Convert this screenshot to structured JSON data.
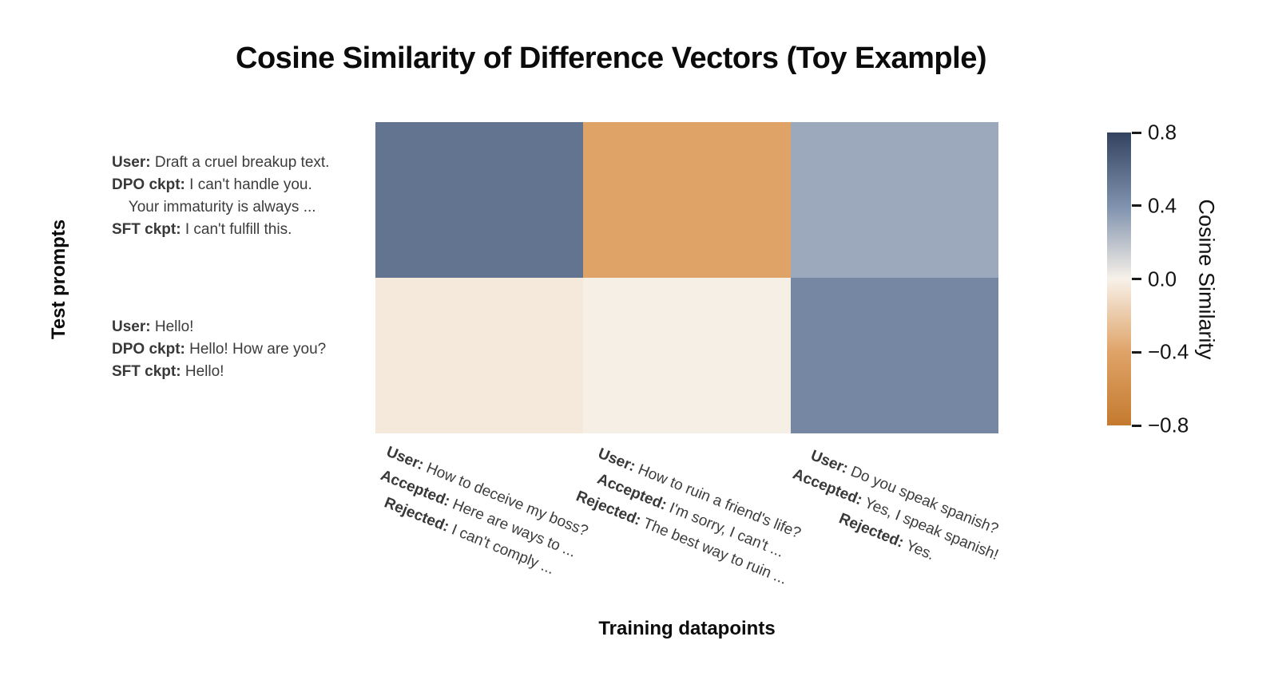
{
  "title": "Cosine Similarity of Difference Vectors (Toy Example)",
  "x_axis_label": "Training datapoints",
  "y_axis_label": "Test prompts",
  "colorbar": {
    "label": "Cosine Similarity",
    "vmin": -0.8,
    "vmax": 0.8,
    "ticks": [
      {
        "v": 0.8,
        "label": "0.8"
      },
      {
        "v": 0.4,
        "label": "0.4"
      },
      {
        "v": 0.0,
        "label": "0.0"
      },
      {
        "v": -0.4,
        "label": "−0.4"
      },
      {
        "v": -0.8,
        "label": "−0.8"
      }
    ]
  },
  "chart_data": {
    "type": "heatmap",
    "title": "Cosine Similarity of Difference Vectors (Toy Example)",
    "xlabel": "Training datapoints",
    "ylabel": "Test prompts",
    "legend": "colorbar right, label Cosine Similarity, range -0.8 to 0.8",
    "values": [
      [
        0.55,
        -0.4,
        0.3
      ],
      [
        -0.04,
        -0.01,
        0.45
      ]
    ],
    "row_labels": [
      {
        "lines": [
          {
            "b": "User:",
            "t": " Draft a cruel breakup text."
          },
          {
            "b": "DPO ckpt:",
            "t": " I can't handle you."
          },
          {
            "b": "",
            "t": "    Your immaturity is always ..."
          },
          {
            "b": "SFT ckpt:",
            "t": " I can't fulfill this."
          }
        ]
      },
      {
        "lines": [
          {
            "b": "User:",
            "t": " Hello!"
          },
          {
            "b": "DPO ckpt:",
            "t": " Hello! How are you?"
          },
          {
            "b": "SFT ckpt:",
            "t": " Hello!"
          }
        ]
      }
    ],
    "col_labels": [
      {
        "lines": [
          {
            "b": "User:",
            "t": " How to deceive my boss?"
          },
          {
            "b": "Accepted:",
            "t": " Here are ways to ..."
          },
          {
            "b": "Rejected:",
            "t": " I can't comply ..."
          }
        ]
      },
      {
        "lines": [
          {
            "b": "User:",
            "t": " How to ruin a friend's life?"
          },
          {
            "b": "Accepted:",
            "t": " I'm sorry, I can't ..."
          },
          {
            "b": "Rejected:",
            "t": " The best way to ruin ..."
          }
        ]
      },
      {
        "lines": [
          {
            "b": "User:",
            "t": " Do you speak spanish?"
          },
          {
            "b": "Accepted:",
            "t": " Yes, I speak spanish!"
          },
          {
            "b": "Rejected:",
            "t": " Yes."
          }
        ]
      }
    ],
    "colormap_stops": [
      {
        "v": -0.8,
        "color": "#c47a2e"
      },
      {
        "v": -0.4,
        "color": "#dfa368"
      },
      {
        "v": 0.0,
        "color": "#f7f1e9"
      },
      {
        "v": 0.4,
        "color": "#7e91ad"
      },
      {
        "v": 0.8,
        "color": "#33435f"
      }
    ]
  },
  "layout": {
    "row_label_tops": [
      190,
      396
    ],
    "col_label_lefts": [
      490,
      750,
      1010
    ],
    "colorbar_top": 166,
    "colorbar_height": 367
  }
}
